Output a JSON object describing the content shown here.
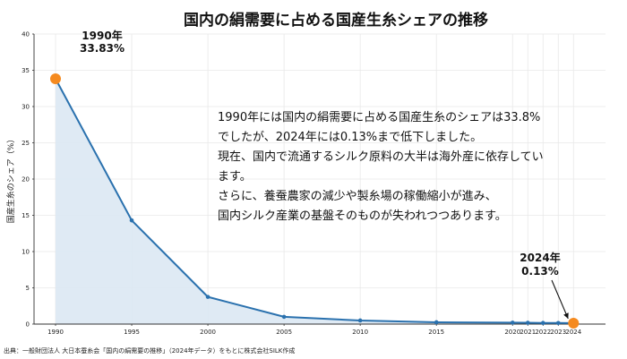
{
  "chart_data": {
    "type": "line",
    "title": "国内の絹需要に占める国産生糸シェアの推移",
    "ylabel": "国産生糸のシェア（%）",
    "xlabel": "",
    "ylim": [
      0,
      40
    ],
    "yticks": [
      0,
      5,
      10,
      15,
      20,
      25,
      30,
      35,
      40
    ],
    "xticks": [
      1990,
      1995,
      2000,
      2005,
      2010,
      2015,
      2020,
      2021,
      2022,
      2023,
      2024
    ],
    "grid": true,
    "area_fill": true,
    "series": [
      {
        "x": [
          1990,
          1995,
          2000,
          2005,
          2010,
          2015,
          2020,
          2021,
          2022,
          2023,
          2024
        ],
        "y": [
          33.83,
          14.3,
          3.75,
          1.0,
          0.5,
          0.25,
          0.2,
          0.18,
          0.16,
          0.15,
          0.13
        ]
      }
    ],
    "annotations": [
      {
        "x": 1990,
        "y": 33.83,
        "year_label": "1990年",
        "value_label": "33.83%"
      },
      {
        "x": 2024,
        "y": 0.13,
        "year_label": "2024年",
        "value_label": "0.13%"
      }
    ],
    "colors": {
      "line": "#2a71ae",
      "fill": "#dce8f3",
      "highlight": "#f58a1f",
      "grid": "#e8e8e8"
    }
  },
  "text_block": {
    "lines": [
      "1990年には国内の絹需要に占める国産生糸のシェアは33.8%",
      "でしたが、2024年には0.13%まで低下しました。",
      "現在、国内で流通するシルク原料の大半は海外産に依存してい",
      "ます。",
      "さらに、養蚕農家の減少や製糸場の稼働縮小が進み、",
      "国内シルク産業の基盤そのものが失われつつあります。"
    ]
  },
  "source": "出典：一般財団法人 大日本蚕糸会「国内の絹需要の推移」（2024年データ）をもとに株式会社SILK作成"
}
